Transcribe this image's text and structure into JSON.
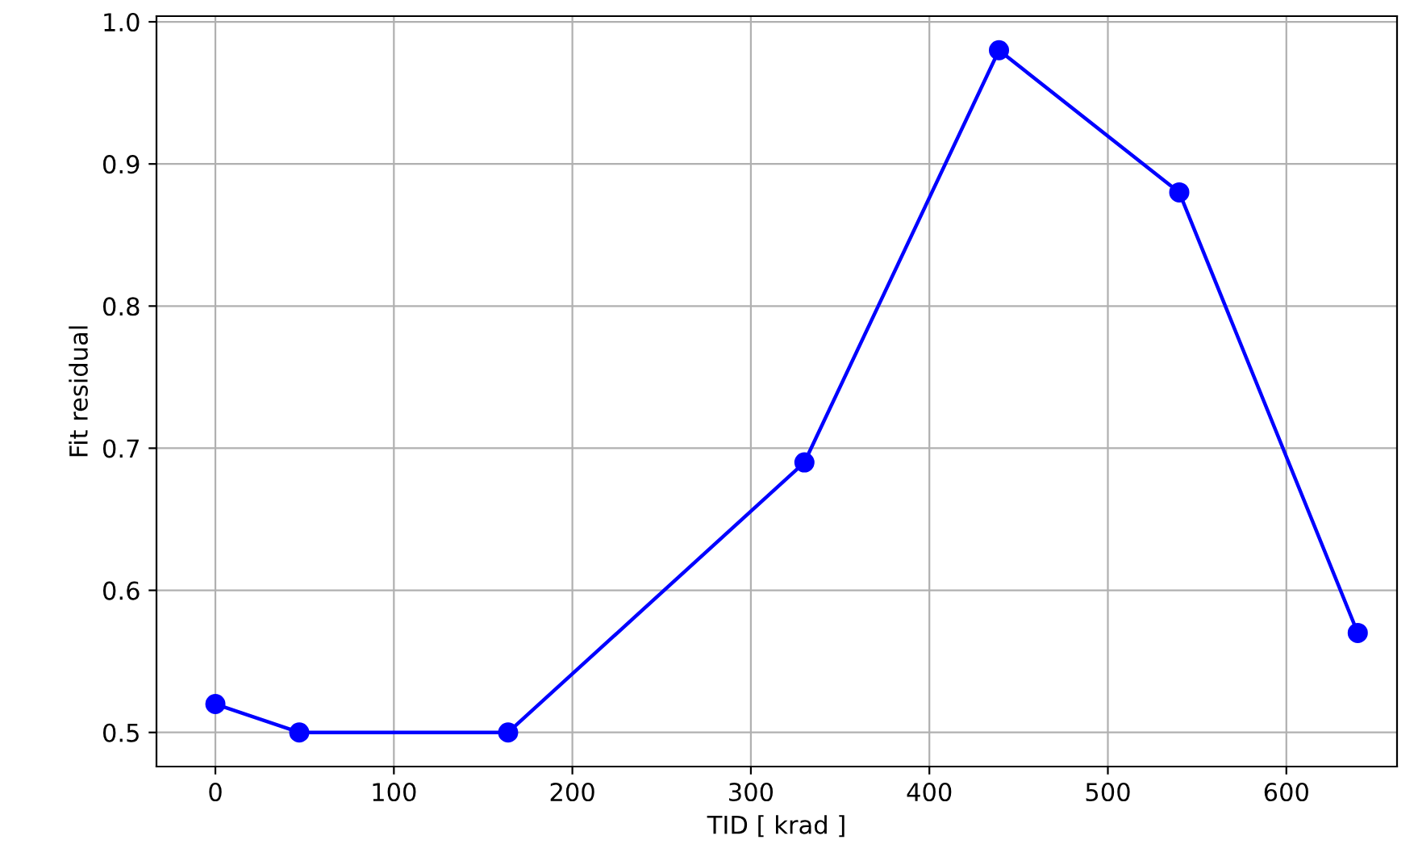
{
  "chart_data": {
    "type": "line",
    "xlabel": "TID [ krad ]",
    "ylabel": "Fit residual",
    "x": [
      0,
      47,
      164,
      330,
      439,
      540,
      640
    ],
    "series": [
      {
        "color": "#0000ff",
        "values": [
          0.52,
          0.5,
          0.5,
          0.69,
          0.98,
          0.88,
          0.57
        ]
      }
    ],
    "xlim": [
      -33,
      662
    ],
    "ylim": [
      0.476,
      1.004
    ],
    "xticks": [
      0,
      100,
      200,
      300,
      400,
      500,
      600
    ],
    "yticks": [
      0.5,
      0.6,
      0.7,
      0.8,
      0.9,
      {
        "value": 1.0,
        "label": "1.0"
      }
    ],
    "grid": true,
    "marker": "circle",
    "line_style": "solid"
  }
}
